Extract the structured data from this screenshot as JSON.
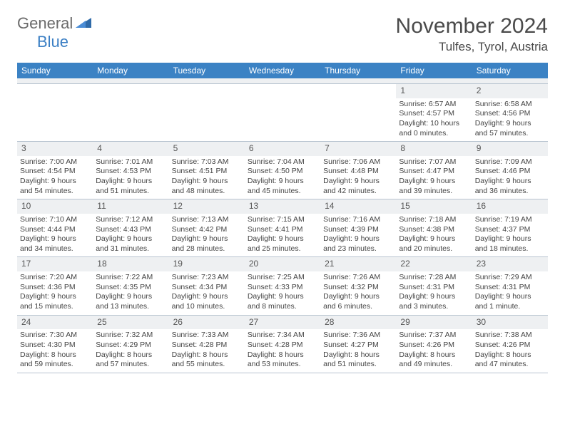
{
  "brand": {
    "name_gray": "General",
    "name_blue": "Blue"
  },
  "title": "November 2024",
  "location": "Tulfes, Tyrol, Austria",
  "day_headers": [
    "Sunday",
    "Monday",
    "Tuesday",
    "Wednesday",
    "Thursday",
    "Friday",
    "Saturday"
  ],
  "header_bg": "#3b82c4",
  "daynum_bg": "#eef0f2",
  "border_color": "#b8c4d0",
  "weeks": [
    [
      {
        "n": "",
        "sunrise": "",
        "sunset": "",
        "daylight": ""
      },
      {
        "n": "",
        "sunrise": "",
        "sunset": "",
        "daylight": ""
      },
      {
        "n": "",
        "sunrise": "",
        "sunset": "",
        "daylight": ""
      },
      {
        "n": "",
        "sunrise": "",
        "sunset": "",
        "daylight": ""
      },
      {
        "n": "",
        "sunrise": "",
        "sunset": "",
        "daylight": ""
      },
      {
        "n": "1",
        "sunrise": "Sunrise: 6:57 AM",
        "sunset": "Sunset: 4:57 PM",
        "daylight": "Daylight: 10 hours and 0 minutes."
      },
      {
        "n": "2",
        "sunrise": "Sunrise: 6:58 AM",
        "sunset": "Sunset: 4:56 PM",
        "daylight": "Daylight: 9 hours and 57 minutes."
      }
    ],
    [
      {
        "n": "3",
        "sunrise": "Sunrise: 7:00 AM",
        "sunset": "Sunset: 4:54 PM",
        "daylight": "Daylight: 9 hours and 54 minutes."
      },
      {
        "n": "4",
        "sunrise": "Sunrise: 7:01 AM",
        "sunset": "Sunset: 4:53 PM",
        "daylight": "Daylight: 9 hours and 51 minutes."
      },
      {
        "n": "5",
        "sunrise": "Sunrise: 7:03 AM",
        "sunset": "Sunset: 4:51 PM",
        "daylight": "Daylight: 9 hours and 48 minutes."
      },
      {
        "n": "6",
        "sunrise": "Sunrise: 7:04 AM",
        "sunset": "Sunset: 4:50 PM",
        "daylight": "Daylight: 9 hours and 45 minutes."
      },
      {
        "n": "7",
        "sunrise": "Sunrise: 7:06 AM",
        "sunset": "Sunset: 4:48 PM",
        "daylight": "Daylight: 9 hours and 42 minutes."
      },
      {
        "n": "8",
        "sunrise": "Sunrise: 7:07 AM",
        "sunset": "Sunset: 4:47 PM",
        "daylight": "Daylight: 9 hours and 39 minutes."
      },
      {
        "n": "9",
        "sunrise": "Sunrise: 7:09 AM",
        "sunset": "Sunset: 4:46 PM",
        "daylight": "Daylight: 9 hours and 36 minutes."
      }
    ],
    [
      {
        "n": "10",
        "sunrise": "Sunrise: 7:10 AM",
        "sunset": "Sunset: 4:44 PM",
        "daylight": "Daylight: 9 hours and 34 minutes."
      },
      {
        "n": "11",
        "sunrise": "Sunrise: 7:12 AM",
        "sunset": "Sunset: 4:43 PM",
        "daylight": "Daylight: 9 hours and 31 minutes."
      },
      {
        "n": "12",
        "sunrise": "Sunrise: 7:13 AM",
        "sunset": "Sunset: 4:42 PM",
        "daylight": "Daylight: 9 hours and 28 minutes."
      },
      {
        "n": "13",
        "sunrise": "Sunrise: 7:15 AM",
        "sunset": "Sunset: 4:41 PM",
        "daylight": "Daylight: 9 hours and 25 minutes."
      },
      {
        "n": "14",
        "sunrise": "Sunrise: 7:16 AM",
        "sunset": "Sunset: 4:39 PM",
        "daylight": "Daylight: 9 hours and 23 minutes."
      },
      {
        "n": "15",
        "sunrise": "Sunrise: 7:18 AM",
        "sunset": "Sunset: 4:38 PM",
        "daylight": "Daylight: 9 hours and 20 minutes."
      },
      {
        "n": "16",
        "sunrise": "Sunrise: 7:19 AM",
        "sunset": "Sunset: 4:37 PM",
        "daylight": "Daylight: 9 hours and 18 minutes."
      }
    ],
    [
      {
        "n": "17",
        "sunrise": "Sunrise: 7:20 AM",
        "sunset": "Sunset: 4:36 PM",
        "daylight": "Daylight: 9 hours and 15 minutes."
      },
      {
        "n": "18",
        "sunrise": "Sunrise: 7:22 AM",
        "sunset": "Sunset: 4:35 PM",
        "daylight": "Daylight: 9 hours and 13 minutes."
      },
      {
        "n": "19",
        "sunrise": "Sunrise: 7:23 AM",
        "sunset": "Sunset: 4:34 PM",
        "daylight": "Daylight: 9 hours and 10 minutes."
      },
      {
        "n": "20",
        "sunrise": "Sunrise: 7:25 AM",
        "sunset": "Sunset: 4:33 PM",
        "daylight": "Daylight: 9 hours and 8 minutes."
      },
      {
        "n": "21",
        "sunrise": "Sunrise: 7:26 AM",
        "sunset": "Sunset: 4:32 PM",
        "daylight": "Daylight: 9 hours and 6 minutes."
      },
      {
        "n": "22",
        "sunrise": "Sunrise: 7:28 AM",
        "sunset": "Sunset: 4:31 PM",
        "daylight": "Daylight: 9 hours and 3 minutes."
      },
      {
        "n": "23",
        "sunrise": "Sunrise: 7:29 AM",
        "sunset": "Sunset: 4:31 PM",
        "daylight": "Daylight: 9 hours and 1 minute."
      }
    ],
    [
      {
        "n": "24",
        "sunrise": "Sunrise: 7:30 AM",
        "sunset": "Sunset: 4:30 PM",
        "daylight": "Daylight: 8 hours and 59 minutes."
      },
      {
        "n": "25",
        "sunrise": "Sunrise: 7:32 AM",
        "sunset": "Sunset: 4:29 PM",
        "daylight": "Daylight: 8 hours and 57 minutes."
      },
      {
        "n": "26",
        "sunrise": "Sunrise: 7:33 AM",
        "sunset": "Sunset: 4:28 PM",
        "daylight": "Daylight: 8 hours and 55 minutes."
      },
      {
        "n": "27",
        "sunrise": "Sunrise: 7:34 AM",
        "sunset": "Sunset: 4:28 PM",
        "daylight": "Daylight: 8 hours and 53 minutes."
      },
      {
        "n": "28",
        "sunrise": "Sunrise: 7:36 AM",
        "sunset": "Sunset: 4:27 PM",
        "daylight": "Daylight: 8 hours and 51 minutes."
      },
      {
        "n": "29",
        "sunrise": "Sunrise: 7:37 AM",
        "sunset": "Sunset: 4:26 PM",
        "daylight": "Daylight: 8 hours and 49 minutes."
      },
      {
        "n": "30",
        "sunrise": "Sunrise: 7:38 AM",
        "sunset": "Sunset: 4:26 PM",
        "daylight": "Daylight: 8 hours and 47 minutes."
      }
    ]
  ]
}
